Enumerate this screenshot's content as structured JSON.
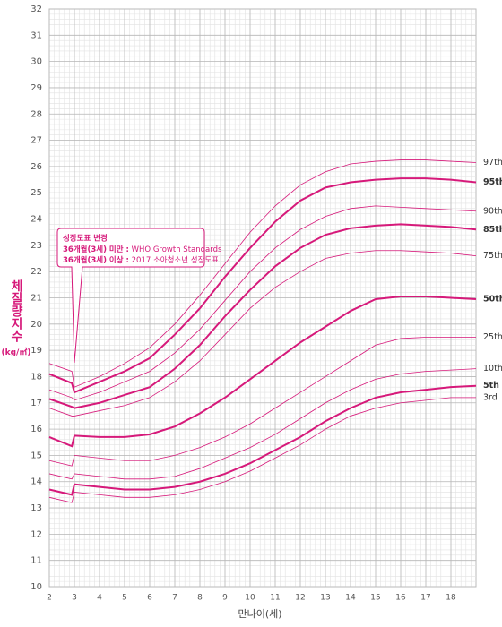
{
  "chart_data": {
    "type": "line",
    "y_label": "체질량지수",
    "y_unit": "(kg/㎡)",
    "x_label": "만나이(세)",
    "xlim": [
      2,
      19
    ],
    "ylim": [
      10,
      32
    ],
    "xticks": [
      2,
      3,
      4,
      5,
      6,
      7,
      8,
      9,
      10,
      11,
      12,
      13,
      14,
      15,
      16,
      17,
      18
    ],
    "yticks": [
      10,
      11,
      12,
      13,
      14,
      15,
      16,
      17,
      18,
      19,
      20,
      21,
      22,
      23,
      24,
      25,
      26,
      27,
      28,
      29,
      30,
      31,
      32
    ],
    "grid": true,
    "minor_divisions": 5,
    "annotation": {
      "title": "성장도표 변경",
      "lines": [
        {
          "label": "36개월(3세) 미만 :",
          "text": "WHO Growth Standards"
        },
        {
          "label": "36개월(3세) 이상 :",
          "text": "2017 소아청소년 성장도표"
        }
      ]
    },
    "x": [
      2,
      2.9,
      3,
      4,
      5,
      6,
      7,
      8,
      9,
      10,
      11,
      12,
      13,
      14,
      15,
      16,
      17,
      18,
      19
    ],
    "series": [
      {
        "name": "97th",
        "color": "#d6197a",
        "linewidth": 0.8,
        "values": [
          18.5,
          18.2,
          17.6,
          18.0,
          18.5,
          19.1,
          20.0,
          21.1,
          22.3,
          23.5,
          24.5,
          25.3,
          25.8,
          26.1,
          26.2,
          26.25,
          26.25,
          26.2,
          26.15
        ]
      },
      {
        "name": "95th",
        "color": "#d6197a",
        "linewidth": 2,
        "values": [
          18.1,
          17.75,
          17.4,
          17.8,
          18.2,
          18.7,
          19.6,
          20.6,
          21.8,
          22.9,
          23.9,
          24.7,
          25.2,
          25.4,
          25.5,
          25.55,
          25.55,
          25.5,
          25.4
        ]
      },
      {
        "name": "90th",
        "color": "#d6197a",
        "linewidth": 0.8,
        "values": [
          17.5,
          17.2,
          17.1,
          17.4,
          17.8,
          18.2,
          18.9,
          19.8,
          20.9,
          22.0,
          22.9,
          23.6,
          24.1,
          24.4,
          24.5,
          24.45,
          24.4,
          24.35,
          24.3
        ]
      },
      {
        "name": "85th",
        "color": "#d6197a",
        "linewidth": 2,
        "values": [
          17.15,
          16.85,
          16.8,
          17.0,
          17.3,
          17.6,
          18.3,
          19.2,
          20.3,
          21.3,
          22.2,
          22.9,
          23.4,
          23.65,
          23.75,
          23.8,
          23.75,
          23.7,
          23.6
        ]
      },
      {
        "name": "75th",
        "color": "#d6197a",
        "linewidth": 0.8,
        "values": [
          16.8,
          16.5,
          16.5,
          16.7,
          16.9,
          17.2,
          17.8,
          18.6,
          19.6,
          20.6,
          21.4,
          22.0,
          22.5,
          22.7,
          22.8,
          22.8,
          22.75,
          22.7,
          22.6
        ]
      },
      {
        "name": "50th",
        "color": "#d6197a",
        "linewidth": 2,
        "values": [
          15.7,
          15.35,
          15.75,
          15.7,
          15.7,
          15.8,
          16.1,
          16.6,
          17.2,
          17.9,
          18.6,
          19.3,
          19.9,
          20.5,
          20.95,
          21.05,
          21.05,
          21.0,
          20.95
        ]
      },
      {
        "name": "25th",
        "color": "#d6197a",
        "linewidth": 0.8,
        "values": [
          14.8,
          14.6,
          15.0,
          14.9,
          14.8,
          14.8,
          15.0,
          15.3,
          15.7,
          16.2,
          16.8,
          17.4,
          18.0,
          18.6,
          19.2,
          19.45,
          19.5,
          19.5,
          19.5
        ]
      },
      {
        "name": "10th",
        "color": "#d6197a",
        "linewidth": 0.8,
        "values": [
          14.3,
          14.1,
          14.3,
          14.2,
          14.1,
          14.1,
          14.2,
          14.5,
          14.9,
          15.3,
          15.8,
          16.4,
          17.0,
          17.5,
          17.9,
          18.1,
          18.2,
          18.25,
          18.3
        ]
      },
      {
        "name": "5th",
        "color": "#d6197a",
        "linewidth": 2,
        "values": [
          13.7,
          13.5,
          13.9,
          13.8,
          13.7,
          13.7,
          13.8,
          14.0,
          14.3,
          14.7,
          15.2,
          15.7,
          16.3,
          16.8,
          17.2,
          17.4,
          17.5,
          17.6,
          17.65
        ]
      },
      {
        "name": "3rd",
        "color": "#d6197a",
        "linewidth": 0.8,
        "values": [
          13.4,
          13.2,
          13.6,
          13.5,
          13.4,
          13.4,
          13.5,
          13.7,
          14.0,
          14.4,
          14.9,
          15.4,
          16.0,
          16.5,
          16.8,
          17.0,
          17.1,
          17.2,
          17.2
        ]
      }
    ]
  }
}
